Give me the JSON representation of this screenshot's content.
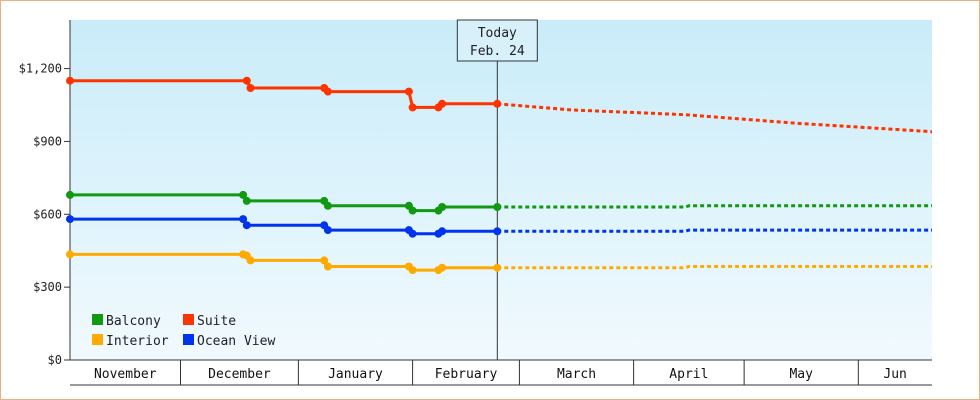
{
  "chart_data": {
    "type": "line",
    "title": "",
    "xlabel": "",
    "ylabel": "",
    "ylim": [
      0,
      1400
    ],
    "y_ticks": [
      {
        "value": 0,
        "label": "$0"
      },
      {
        "value": 300,
        "label": "$300"
      },
      {
        "value": 600,
        "label": "$600"
      },
      {
        "value": 900,
        "label": "$900"
      },
      {
        "value": 1200,
        "label": "$1,200"
      }
    ],
    "x_start": "2023-10-31",
    "x_end": "2024-06-21",
    "months": [
      {
        "label": "November",
        "start": "2023-10-31",
        "end": "2023-11-30"
      },
      {
        "label": "December",
        "start": "2023-11-30",
        "end": "2024-01-01"
      },
      {
        "label": "January",
        "start": "2024-01-01",
        "end": "2024-02-01"
      },
      {
        "label": "February",
        "start": "2024-02-01",
        "end": "2024-03-01"
      },
      {
        "label": "March",
        "start": "2024-03-01",
        "end": "2024-04-01"
      },
      {
        "label": "April",
        "start": "2024-04-01",
        "end": "2024-05-01"
      },
      {
        "label": "May",
        "start": "2024-05-01",
        "end": "2024-06-01"
      },
      {
        "label": "Jun",
        "start": "2024-06-01",
        "end": "2024-06-21"
      }
    ],
    "today": {
      "line1": "Today",
      "line2": "Feb. 24",
      "date": "2024-02-24"
    },
    "grid": false,
    "legend_position": "bottom-left",
    "legend_order": [
      "Balcony",
      "Suite",
      "Interior",
      "Ocean View"
    ],
    "series": [
      {
        "name": "Suite",
        "color": "#ff3300",
        "observed": [
          [
            "2023-10-31",
            1150
          ],
          [
            "2023-12-18",
            1150
          ],
          [
            "2023-12-19",
            1120
          ],
          [
            "2024-01-08",
            1120
          ],
          [
            "2024-01-09",
            1105
          ],
          [
            "2024-01-31",
            1105
          ],
          [
            "2024-02-01",
            1040
          ],
          [
            "2024-02-08",
            1040
          ],
          [
            "2024-02-09",
            1055
          ],
          [
            "2024-02-24",
            1055
          ]
        ],
        "projected": [
          [
            "2024-02-24",
            1055
          ],
          [
            "2024-03-15",
            1030
          ],
          [
            "2024-04-15",
            1010
          ],
          [
            "2024-05-15",
            975
          ],
          [
            "2024-06-21",
            940
          ]
        ]
      },
      {
        "name": "Balcony",
        "color": "#119911",
        "observed": [
          [
            "2023-10-31",
            680
          ],
          [
            "2023-12-17",
            680
          ],
          [
            "2023-12-18",
            655
          ],
          [
            "2024-01-08",
            655
          ],
          [
            "2024-01-09",
            635
          ],
          [
            "2024-01-31",
            635
          ],
          [
            "2024-02-01",
            615
          ],
          [
            "2024-02-08",
            615
          ],
          [
            "2024-02-09",
            630
          ],
          [
            "2024-02-24",
            630
          ]
        ],
        "projected": [
          [
            "2024-02-24",
            630
          ],
          [
            "2024-04-15",
            630
          ],
          [
            "2024-04-16",
            635
          ],
          [
            "2024-06-21",
            635
          ]
        ]
      },
      {
        "name": "Ocean View",
        "color": "#0033ee",
        "observed": [
          [
            "2023-10-31",
            580
          ],
          [
            "2023-12-17",
            580
          ],
          [
            "2023-12-18",
            555
          ],
          [
            "2024-01-08",
            555
          ],
          [
            "2024-01-09",
            535
          ],
          [
            "2024-01-31",
            535
          ],
          [
            "2024-02-01",
            520
          ],
          [
            "2024-02-08",
            520
          ],
          [
            "2024-02-09",
            530
          ],
          [
            "2024-02-24",
            530
          ]
        ],
        "projected": [
          [
            "2024-02-24",
            530
          ],
          [
            "2024-04-15",
            530
          ],
          [
            "2024-04-16",
            535
          ],
          [
            "2024-06-21",
            535
          ]
        ]
      },
      {
        "name": "Interior",
        "color": "#ffaa00",
        "observed": [
          [
            "2023-10-31",
            435
          ],
          [
            "2023-12-17",
            435
          ],
          [
            "2023-12-18",
            430
          ],
          [
            "2023-12-19",
            410
          ],
          [
            "2024-01-08",
            410
          ],
          [
            "2024-01-09",
            385
          ],
          [
            "2024-01-31",
            385
          ],
          [
            "2024-02-01",
            370
          ],
          [
            "2024-02-08",
            370
          ],
          [
            "2024-02-09",
            380
          ],
          [
            "2024-02-24",
            380
          ]
        ],
        "projected": [
          [
            "2024-02-24",
            380
          ],
          [
            "2024-04-15",
            380
          ],
          [
            "2024-04-16",
            385
          ],
          [
            "2024-06-21",
            385
          ]
        ]
      }
    ]
  }
}
